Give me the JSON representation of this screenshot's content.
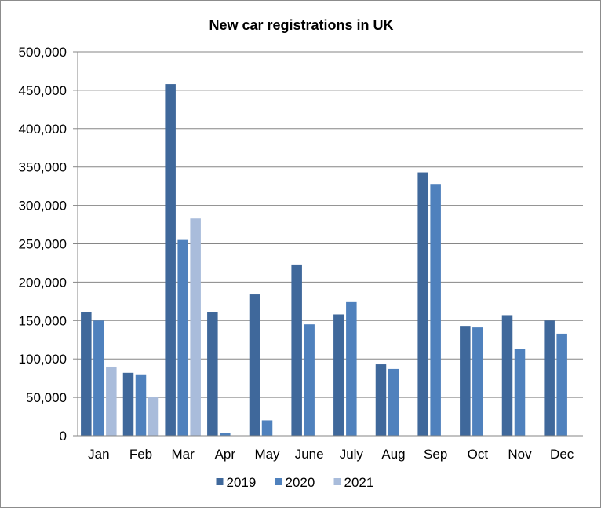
{
  "chart_data": {
    "type": "bar",
    "title": "New car registrations in UK",
    "xlabel": "",
    "ylabel": "",
    "categories": [
      "Jan",
      "Feb",
      "Mar",
      "Apr",
      "May",
      "June",
      "July",
      "Aug",
      "Sep",
      "Oct",
      "Nov",
      "Dec"
    ],
    "series": [
      {
        "name": "2019",
        "color": "#3f689b",
        "values": [
          161000,
          82000,
          458000,
          161000,
          184000,
          223000,
          158000,
          93000,
          343000,
          143000,
          157000,
          150000
        ]
      },
      {
        "name": "2020",
        "color": "#4f81bd",
        "values": [
          150000,
          80000,
          255000,
          4000,
          20000,
          145000,
          175000,
          87000,
          328000,
          141000,
          113000,
          133000
        ]
      },
      {
        "name": "2021",
        "color": "#a9bcdb",
        "values": [
          90000,
          51000,
          283000,
          null,
          null,
          null,
          null,
          null,
          null,
          null,
          null,
          null
        ]
      }
    ],
    "ylim": [
      0,
      500000
    ],
    "yticks": [
      "0",
      "50,000",
      "100,000",
      "150,000",
      "200,000",
      "250,000",
      "300,000",
      "350,000",
      "400,000",
      "450,000",
      "500,000"
    ],
    "ytick_values": [
      0,
      50000,
      100000,
      150000,
      200000,
      250000,
      300000,
      350000,
      400000,
      450000,
      500000
    ],
    "grid": true,
    "legend_position": "bottom"
  }
}
